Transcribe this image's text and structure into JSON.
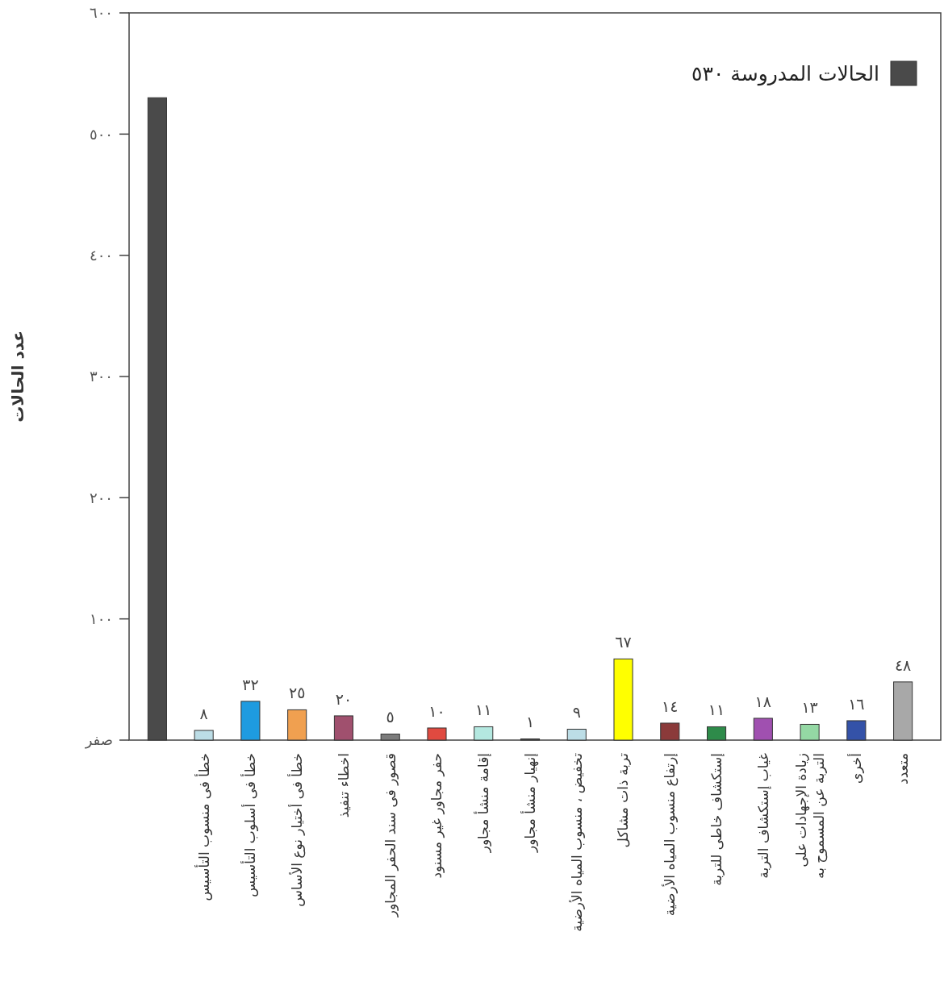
{
  "chart_data": {
    "type": "bar",
    "stacked": true,
    "ylabel": "عدد الحالات",
    "legend": "top right",
    "categories": [
      null,
      "خطأ فى منسوب التأسيس",
      "خطأ فى أسلوب التأسيس",
      "خطأ فى أختيار نوع الأساس",
      "اخطاء تنفيذ",
      "قصور فى سند الحفر المجاور",
      "حفر مجاور غير مسنود",
      "إقامة منشأ مجاور",
      "إنهيار منشأ مجاور",
      "تخفيض ، منسوب المياه الأرضية",
      "تربة ذات مشاكل",
      "إرتفاع منسوب المياه الأرضية",
      "إستكشاف خاطى للتربة",
      "غياب إستكشاف التربة",
      "زيادة الإجهادات على\nالتربة عن المسموح به",
      "أخرى",
      "متعدد"
    ],
    "series": [
      {
        "name": "الحالات المدروسة ٥٣٠",
        "color": "#4a4a4a",
        "values": [
          530,
          null,
          null,
          null,
          null,
          null,
          null,
          null,
          null,
          null,
          null,
          null,
          null,
          null,
          null,
          null,
          null
        ]
      },
      {
        "colors": [
          null,
          "#bcdde6",
          "#1e9be0",
          "#f0a050",
          "#a0506e",
          "#7c7c7c",
          "#e04a40",
          "#b4e8e0",
          "#555555",
          "#bcdde6",
          "#ffff00",
          "#8b3a3a",
          "#2e8b4a",
          "#a050b0",
          "#94d8a4",
          "#3452a8",
          "#a8a8a8"
        ],
        "values": [
          null,
          8,
          32,
          25,
          20,
          5,
          10,
          11,
          1,
          9,
          67,
          14,
          11,
          18,
          13,
          16,
          48
        ],
        "value_labels": [
          null,
          "٨",
          "٣٢",
          "٢٥",
          "٢٠",
          "٥",
          "١٠",
          "١١",
          "١",
          "٩",
          "٦٧",
          "١٤",
          "١١",
          "١٨",
          "١٣",
          "١٦",
          "٤٨"
        ]
      }
    ],
    "ylim": [
      0,
      600
    ],
    "yticks": [
      {
        "value": 0,
        "label": "صفر"
      },
      {
        "value": 100,
        "label": "١٠٠"
      },
      {
        "value": 200,
        "label": "٢٠٠"
      },
      {
        "value": 300,
        "label": "٣٠٠"
      },
      {
        "value": 400,
        "label": "٤٠٠"
      },
      {
        "value": 500,
        "label": "٥٠٠"
      },
      {
        "value": 600,
        "label": "٦٠٠"
      }
    ]
  }
}
